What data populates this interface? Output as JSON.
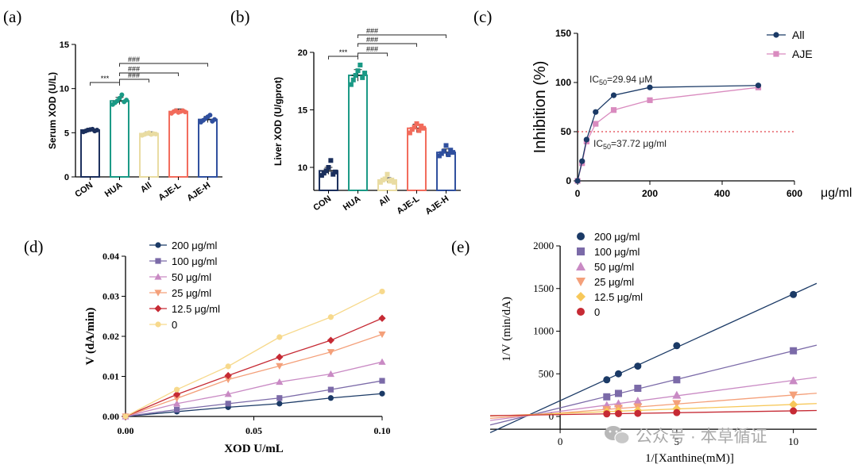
{
  "panels": {
    "a": {
      "letter": "(a)",
      "chart_data": {
        "type": "bar",
        "categories": [
          "CON",
          "HUA",
          "All",
          "AJE-L",
          "AJE-H"
        ],
        "values": [
          5.3,
          8.6,
          4.9,
          7.4,
          6.5
        ],
        "errors": [
          0.2,
          0.4,
          0.2,
          0.3,
          0.35
        ],
        "colors": [
          "#1b2f5c",
          "#1a9985",
          "#e9dca2",
          "#f26b5b",
          "#2f4f9e"
        ],
        "points": [
          [
            5.1,
            5.2,
            5.3,
            5.35,
            5.4,
            5.2,
            5.3
          ],
          [
            8.2,
            8.4,
            8.6,
            8.9,
            9.3,
            8.5,
            8.7
          ],
          [
            4.7,
            4.8,
            4.9,
            5.0,
            4.8,
            4.9,
            4.85
          ],
          [
            7.2,
            7.4,
            7.5,
            7.3,
            7.4,
            7.5,
            7.35
          ],
          [
            6.2,
            6.4,
            6.6,
            6.8,
            7.0,
            6.3,
            6.5
          ]
        ],
        "ylabel": "Serum XOD (U/L)",
        "ylim": [
          0,
          15
        ],
        "yticks": [
          "0",
          "5",
          "10",
          "15"
        ],
        "significance": [
          {
            "from": 0,
            "to": 1,
            "label": "***"
          },
          {
            "from": 1,
            "to": 2,
            "label": "###"
          },
          {
            "from": 1,
            "to": 3,
            "label": "###"
          },
          {
            "from": 1,
            "to": 4,
            "label": "###"
          }
        ]
      }
    },
    "b": {
      "letter": "(b)",
      "chart_data": {
        "type": "bar",
        "categories": [
          "CON",
          "HUA",
          "All",
          "AJE-L",
          "AJE-H"
        ],
        "values": [
          9.7,
          18.0,
          8.9,
          13.4,
          11.3
        ],
        "errors": [
          0.3,
          0.5,
          0.2,
          0.35,
          0.3
        ],
        "colors": [
          "#1b2f5c",
          "#1a9985",
          "#e9dca2",
          "#f26b5b",
          "#2f4f9e"
        ],
        "points": [
          [
            9.3,
            9.5,
            9.7,
            10.0,
            10.6,
            9.4,
            9.6
          ],
          [
            17.2,
            17.6,
            18.0,
            18.4,
            18.9,
            17.8,
            18.2
          ],
          [
            8.7,
            8.9,
            9.0,
            9.4,
            8.8,
            8.9,
            8.7
          ],
          [
            13.0,
            13.3,
            13.5,
            13.8,
            13.2,
            13.6,
            13.4
          ],
          [
            11.0,
            11.2,
            11.4,
            11.9,
            11.1,
            11.5,
            11.3
          ]
        ],
        "ylabel": "Liver XOD (U/gprot)",
        "ylim": [
          8,
          20
        ],
        "yticks": [
          "10",
          "15",
          "20"
        ],
        "significance": [
          {
            "from": 0,
            "to": 1,
            "label": "***"
          },
          {
            "from": 1,
            "to": 2,
            "label": "###"
          },
          {
            "from": 1,
            "to": 3,
            "label": "###"
          },
          {
            "from": 1,
            "to": 4,
            "label": "###"
          }
        ]
      }
    },
    "c": {
      "letter": "(c)",
      "chart_data": {
        "type": "line",
        "xlabel": "μg/ml",
        "ylabel": "Inhibition (%)",
        "xlim": [
          0,
          600
        ],
        "ylim": [
          0,
          150
        ],
        "xticks": [
          "0",
          "200",
          "400",
          "600"
        ],
        "yticks": [
          "0",
          "50",
          "100",
          "150"
        ],
        "threshold": 50,
        "series": [
          {
            "name": "All",
            "color": "#1b3a66",
            "marker": "circle",
            "x": [
              0,
              12.5,
              25,
              50,
              100,
              200,
              500
            ],
            "y": [
              0,
              20,
              42,
              70,
              87,
              95,
              97
            ]
          },
          {
            "name": "AJE",
            "color": "#d98bbf",
            "marker": "square",
            "x": [
              0,
              12.5,
              25,
              50,
              100,
              200,
              500
            ],
            "y": [
              0,
              18,
              40,
              58,
              72,
              82,
              95
            ]
          }
        ],
        "annotations": {
          "all_ic50": "IC50=29.94 μM",
          "aje_ic50": "IC50=37.72 μg/ml"
        }
      }
    },
    "d": {
      "letter": "(d)",
      "chart_data": {
        "type": "line",
        "xlabel": "XOD U/mL",
        "ylabel": "V (dA/min)",
        "xlim": [
          0,
          0.1
        ],
        "ylim": [
          0,
          0.04
        ],
        "xticks": [
          "0.00",
          "0.05",
          "0.10"
        ],
        "yticks": [
          "0.00",
          "0.01",
          "0.02",
          "0.03",
          "0.04"
        ],
        "x": [
          0,
          0.02,
          0.04,
          0.06,
          0.08,
          0.1
        ],
        "series": [
          {
            "name": "200 μg/ml",
            "color": "#1b3a66",
            "marker": "circle",
            "y": [
              0,
              0.0012,
              0.0023,
              0.0032,
              0.0046,
              0.0057
            ]
          },
          {
            "name": "100 μg/ml",
            "color": "#7b6aa8",
            "marker": "square",
            "y": [
              0,
              0.0017,
              0.0032,
              0.0046,
              0.0067,
              0.0089
            ]
          },
          {
            "name": "50 μg/ml",
            "color": "#c98ac4",
            "marker": "triangle",
            "y": [
              0,
              0.0032,
              0.0056,
              0.0086,
              0.0106,
              0.0136
            ]
          },
          {
            "name": "25 μg/ml",
            "color": "#f4a07a",
            "marker": "triangle-down",
            "y": [
              0,
              0.0045,
              0.0092,
              0.0126,
              0.0161,
              0.0205
            ]
          },
          {
            "name": "12.5 μg/ml",
            "color": "#c62a34",
            "marker": "diamond",
            "y": [
              0,
              0.0055,
              0.0102,
              0.0148,
              0.019,
              0.0245
            ]
          },
          {
            "name": "0",
            "color": "#f7d98c",
            "marker": "circle",
            "y": [
              0,
              0.0067,
              0.0125,
              0.0198,
              0.0248,
              0.0312
            ]
          }
        ]
      }
    },
    "e": {
      "letter": "(e)",
      "chart_data": {
        "type": "scatter",
        "xlabel": "1/[Xanthine(mM)]",
        "ylabel": "1/V (min/dA)",
        "xlim": [
          -3,
          11
        ],
        "ylim": [
          -150,
          2000
        ],
        "xticks": [
          "0",
          "5",
          "10"
        ],
        "yticks": [
          "0",
          "500",
          "1000",
          "1500",
          "2000"
        ],
        "x": [
          2,
          2.5,
          3.33,
          5,
          10
        ],
        "series": [
          {
            "name": "200 μg/ml",
            "color": "#1b3a66",
            "marker": "circle",
            "y": [
              430,
              500,
              590,
              830,
              1430
            ]
          },
          {
            "name": "100 μg/ml",
            "color": "#7b6aa8",
            "marker": "square",
            "y": [
              230,
              270,
              330,
              430,
              770
            ]
          },
          {
            "name": "50 μg/ml",
            "color": "#c98ac4",
            "marker": "triangle",
            "y": [
              130,
              150,
              180,
              250,
              420
            ]
          },
          {
            "name": "25 μg/ml",
            "color": "#f4a07a",
            "marker": "triangle-down",
            "y": [
              80,
              95,
              110,
              150,
              250
            ]
          },
          {
            "name": "12.5 μg/ml",
            "color": "#f7c85a",
            "marker": "diamond",
            "y": [
              55,
              62,
              70,
              90,
              140
            ]
          },
          {
            "name": "0",
            "color": "#c62a34",
            "marker": "circle",
            "y": [
              30,
              33,
              36,
              45,
              65
            ]
          }
        ]
      }
    }
  },
  "watermark": {
    "icon": "wechat-icon",
    "text": "公众号 · 本草循证"
  }
}
